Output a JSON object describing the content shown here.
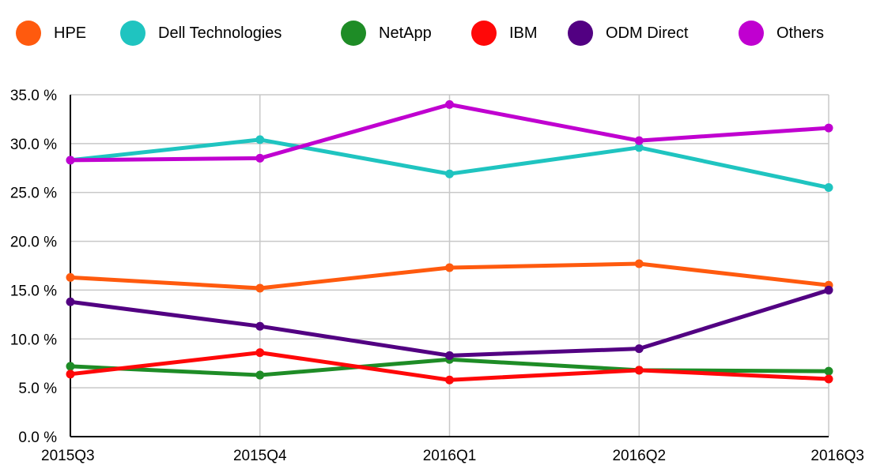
{
  "chart_data": {
    "type": "line",
    "title": "",
    "xlabel": "",
    "ylabel": "",
    "categories": [
      "2015Q3",
      "2015Q4",
      "2016Q1",
      "2016Q2",
      "2016Q3"
    ],
    "ylim": [
      0,
      35
    ],
    "yticks": [
      0,
      5,
      10,
      15,
      20,
      25,
      30,
      35
    ],
    "ytick_labels": [
      "0.0 %",
      "5.0 %",
      "10.0 %",
      "15.0 %",
      "20.0 %",
      "25.0 %",
      "30.0 %",
      "35.0 %"
    ],
    "grid": true,
    "legend_position": "top",
    "series": [
      {
        "name": "HPE",
        "color": "#ff5a0e",
        "values": [
          16.3,
          15.2,
          17.3,
          17.7,
          15.5
        ]
      },
      {
        "name": "Dell Technologies",
        "color": "#1fc4c0",
        "values": [
          28.3,
          30.4,
          26.9,
          29.6,
          25.5
        ]
      },
      {
        "name": "NetApp",
        "color": "#1e8c26",
        "values": [
          7.2,
          6.3,
          7.9,
          6.8,
          6.7
        ]
      },
      {
        "name": "IBM",
        "color": "#ff0808",
        "values": [
          6.4,
          8.6,
          5.8,
          6.8,
          5.9
        ]
      },
      {
        "name": "ODM Direct",
        "color": "#520082",
        "values": [
          13.8,
          11.3,
          8.3,
          9.0,
          15.0
        ]
      },
      {
        "name": "Others",
        "color": "#c000d0",
        "values": [
          28.3,
          28.5,
          34.0,
          30.3,
          31.6
        ]
      }
    ]
  }
}
